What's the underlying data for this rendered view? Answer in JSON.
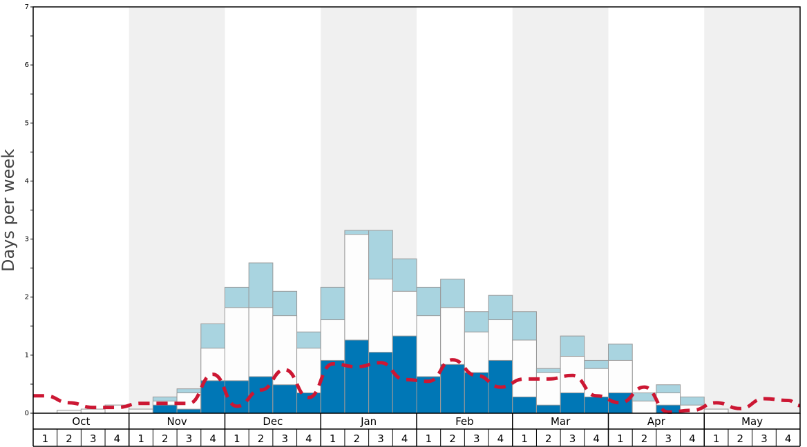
{
  "chart_data": {
    "type": "bar",
    "ylabel": "Days per week",
    "xlabel": "",
    "title": "",
    "ylim": [
      0,
      7
    ],
    "yticks": [
      0,
      1,
      2,
      3,
      4,
      5,
      6,
      7
    ],
    "months": [
      "Oct",
      "Nov",
      "Dec",
      "Jan",
      "Feb",
      "Mar",
      "Apr",
      "May"
    ],
    "week_labels": [
      "1",
      "2",
      "3",
      "4"
    ],
    "categories": [
      "Oct 1",
      "Oct 2",
      "Oct 3",
      "Oct 4",
      "Nov 1",
      "Nov 2",
      "Nov 3",
      "Nov 4",
      "Dec 1",
      "Dec 2",
      "Dec 3",
      "Dec 4",
      "Jan 1",
      "Jan 2",
      "Jan 3",
      "Jan 4",
      "Feb 1",
      "Feb 2",
      "Feb 3",
      "Feb 4",
      "Mar 1",
      "Mar 2",
      "Mar 3",
      "Mar 4",
      "Apr 1",
      "Apr 2",
      "Apr 3",
      "Apr 4",
      "May 1",
      "May 2",
      "May 3",
      "May 4"
    ],
    "series": [
      {
        "color": "#0077b6",
        "values": [
          0,
          0,
          0,
          0,
          0,
          0.14,
          0.07,
          0.56,
          0.56,
          0.63,
          0.49,
          0.35,
          0.91,
          1.26,
          1.05,
          1.33,
          0.63,
          0.84,
          0.7,
          0.91,
          0.28,
          0.14,
          0.35,
          0.28,
          0.35,
          0,
          0.14,
          0,
          0,
          0,
          0,
          0
        ]
      },
      {
        "color": "#fdfdfd",
        "values": [
          0,
          0.05,
          0.07,
          0.14,
          0.07,
          0.21,
          0.35,
          1.12,
          1.82,
          1.82,
          1.68,
          1.12,
          1.61,
          3.08,
          2.31,
          2.1,
          1.68,
          1.82,
          1.4,
          1.61,
          1.26,
          0.7,
          0.98,
          0.77,
          0.91,
          0.21,
          0.35,
          0.14,
          0.07,
          0,
          0,
          0
        ]
      },
      {
        "color": "#a9d4e0",
        "values": [
          0,
          0.05,
          0.07,
          0.14,
          0.07,
          0.28,
          0.42,
          1.54,
          2.17,
          2.59,
          2.1,
          1.4,
          2.17,
          3.15,
          3.15,
          2.66,
          2.17,
          2.31,
          1.75,
          2.03,
          1.75,
          0.77,
          1.33,
          0.91,
          1.19,
          0.35,
          0.49,
          0.28,
          0.07,
          0,
          0,
          0
        ]
      },
      {
        "color": "#cc1733",
        "style": "dashed",
        "values": [
          0.3,
          0.18,
          0.1,
          0.1,
          0.17,
          0.17,
          0.17,
          0.67,
          0.12,
          0.4,
          0.75,
          0.27,
          0.85,
          0.8,
          0.87,
          0.58,
          0.55,
          0.92,
          0.65,
          0.45,
          0.59,
          0.59,
          0.65,
          0.3,
          0.18,
          0.45,
          0.02,
          0.05,
          0.18,
          0.08,
          0.25,
          0.22
        ]
      }
    ],
    "colors": {
      "band": "#f0f0f0",
      "bar_border": "#999999",
      "axis": "#000000"
    }
  }
}
